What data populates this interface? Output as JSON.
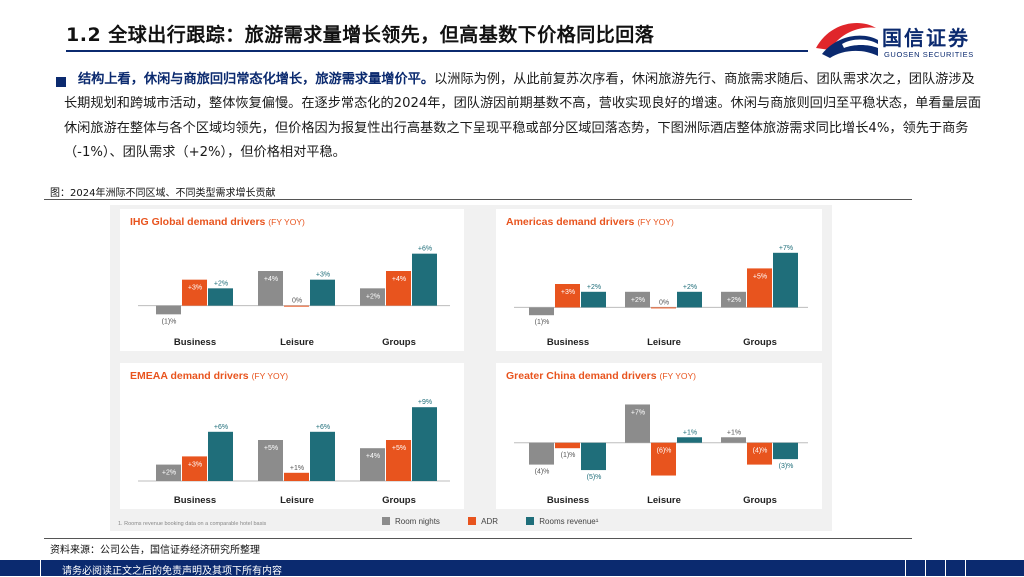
{
  "page": {
    "title": "1.2 全球出行跟踪：旅游需求量增长领先，但高基数下价格同比回落",
    "logo_cn": "国信证券",
    "logo_en": "GUOSEN SECURITIES",
    "para_lead": "结构上看，休闲与商旅回归常态化增长，旅游需求量增价平。",
    "para_body": "以洲际为例，从此前复苏次序看，休闲旅游先行、商旅需求随后、团队需求次之，团队游涉及长期规划和跨城市活动，整体恢复偏慢。在逐步常态化的2024年，团队游因前期基数不高，营收实现良好的增速。休闲与商旅则回归至平稳状态，单看量层面休闲旅游在整体与各个区域均领先，但价格因为报复性出行高基数之下呈现平稳或部分区域回落态势，下图洲际酒店整体旅游需求同比增长4%，领先于商务（-1%）、团队需求（+2%），但价格相对平稳。",
    "fig_caption": "图：2024年洲际不同区域、不同类型需求增长贡献",
    "source": "资料来源：公司公告，国信证券经济研究所整理",
    "footer": "请务必阅读正文之后的免责声明及其项下所有内容"
  },
  "colors": {
    "room_nights": "#8c8c8c",
    "adr": "#e8541e",
    "rooms_revenue": "#1f6e7a",
    "title_accent": "#e8541e",
    "brand_navy": "#0b2a6f",
    "brand_red": "#e0262b"
  },
  "legend": [
    "Room nights",
    "ADR",
    "Rooms revenue¹"
  ],
  "footnote": "1. Rooms revenue booking data on a comparable hotel basis",
  "chart_data": [
    {
      "type": "bar",
      "title": "IHG Global demand drivers",
      "subtitle": "(FY YOY)",
      "categories": [
        "Business",
        "Leisure",
        "Groups"
      ],
      "series": [
        {
          "name": "Room nights",
          "values": [
            -1,
            4,
            2
          ],
          "labels": [
            "(1)%",
            "+4%",
            "+2%"
          ]
        },
        {
          "name": "ADR",
          "values": [
            3,
            0,
            4
          ],
          "labels": [
            "+3%",
            "0%",
            "+4%"
          ]
        },
        {
          "name": "Rooms revenue¹",
          "values": [
            2,
            3,
            6
          ],
          "labels": [
            "+2%",
            "+3%",
            "+6%"
          ]
        }
      ],
      "ylim": [
        -2,
        7
      ]
    },
    {
      "type": "bar",
      "title": "Americas demand drivers",
      "subtitle": "(FY YOY)",
      "categories": [
        "Business",
        "Leisure",
        "Groups"
      ],
      "series": [
        {
          "name": "Room nights",
          "values": [
            -1,
            2,
            2
          ],
          "labels": [
            "(1)%",
            "+2%",
            "+2%"
          ]
        },
        {
          "name": "ADR",
          "values": [
            3,
            0,
            5
          ],
          "labels": [
            "+3%",
            "0%",
            "+5%"
          ]
        },
        {
          "name": "Rooms revenue¹",
          "values": [
            2,
            2,
            7
          ],
          "labels": [
            "+2%",
            "+2%",
            "+7%"
          ]
        }
      ],
      "ylim": [
        -2,
        8
      ]
    },
    {
      "type": "bar",
      "title": "EMEAA demand drivers",
      "subtitle": "(FY YOY)",
      "categories": [
        "Business",
        "Leisure",
        "Groups"
      ],
      "series": [
        {
          "name": "Room nights",
          "values": [
            2,
            5,
            4
          ],
          "labels": [
            "+2%",
            "+5%",
            "+4%"
          ]
        },
        {
          "name": "ADR",
          "values": [
            3,
            1,
            5
          ],
          "labels": [
            "+3%",
            "+1%",
            "+5%"
          ]
        },
        {
          "name": "Rooms revenue¹",
          "values": [
            6,
            6,
            9
          ],
          "labels": [
            "+6%",
            "+6%",
            "+9%"
          ]
        }
      ],
      "ylim": [
        0,
        10
      ]
    },
    {
      "type": "bar",
      "title": "Greater China demand drivers",
      "subtitle": "(FY YOY)",
      "categories": [
        "Business",
        "Leisure",
        "Groups"
      ],
      "series": [
        {
          "name": "Room nights",
          "values": [
            -4,
            7,
            1
          ],
          "labels": [
            "(4)%",
            "+7%",
            "+1%"
          ]
        },
        {
          "name": "ADR",
          "values": [
            -1,
            -6,
            -4
          ],
          "labels": [
            "(1)%",
            "(6)%",
            "(4)%"
          ]
        },
        {
          "name": "Rooms revenue¹",
          "values": [
            -5,
            1,
            -3
          ],
          "labels": [
            "(5)%",
            "+1%",
            "(3)%"
          ]
        }
      ],
      "ylim": [
        -7,
        8
      ]
    }
  ]
}
